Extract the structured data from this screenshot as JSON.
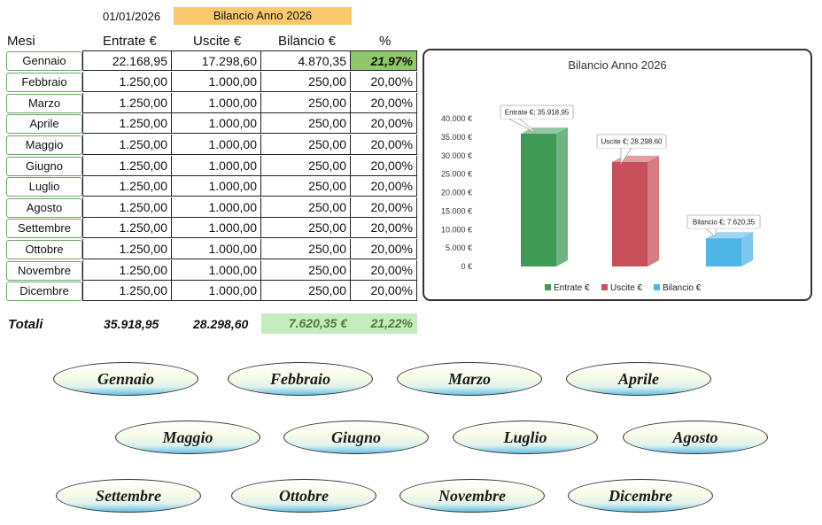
{
  "header": {
    "date": "01/01/2026",
    "title": "Bilancio Anno 2026"
  },
  "columns": {
    "month": "Mesi",
    "entrate": "Entrate €",
    "uscite": "Uscite €",
    "bilancio": "Bilancio €",
    "percent": "%"
  },
  "rows": [
    {
      "month": "Gennaio",
      "entrate": "22.168,95",
      "uscite": "17.298,60",
      "bilancio": "4.870,35",
      "percent": "21,97%"
    },
    {
      "month": "Febbraio",
      "entrate": "1.250,00",
      "uscite": "1.000,00",
      "bilancio": "250,00",
      "percent": "20,00%"
    },
    {
      "month": "Marzo",
      "entrate": "1.250,00",
      "uscite": "1.000,00",
      "bilancio": "250,00",
      "percent": "20,00%"
    },
    {
      "month": "Aprile",
      "entrate": "1.250,00",
      "uscite": "1.000,00",
      "bilancio": "250,00",
      "percent": "20,00%"
    },
    {
      "month": "Maggio",
      "entrate": "1.250,00",
      "uscite": "1.000,00",
      "bilancio": "250,00",
      "percent": "20,00%"
    },
    {
      "month": "Giugno",
      "entrate": "1.250,00",
      "uscite": "1.000,00",
      "bilancio": "250,00",
      "percent": "20,00%"
    },
    {
      "month": "Luglio",
      "entrate": "1.250,00",
      "uscite": "1.000,00",
      "bilancio": "250,00",
      "percent": "20,00%"
    },
    {
      "month": "Agosto",
      "entrate": "1.250,00",
      "uscite": "1.000,00",
      "bilancio": "250,00",
      "percent": "20,00%"
    },
    {
      "month": "Settembre",
      "entrate": "1.250,00",
      "uscite": "1.000,00",
      "bilancio": "250,00",
      "percent": "20,00%"
    },
    {
      "month": "Ottobre",
      "entrate": "1.250,00",
      "uscite": "1.000,00",
      "bilancio": "250,00",
      "percent": "20,00%"
    },
    {
      "month": "Novembre",
      "entrate": "1.250,00",
      "uscite": "1.000,00",
      "bilancio": "250,00",
      "percent": "20,00%"
    },
    {
      "month": "Dicembre",
      "entrate": "1.250,00",
      "uscite": "1.000,00",
      "bilancio": "250,00",
      "percent": "20,00%"
    }
  ],
  "totals": {
    "label": "Totali",
    "entrate": "35.918,95",
    "uscite": "28.298,60",
    "bilancio": "7.620,35 €",
    "percent": "21,22%"
  },
  "colors": {
    "green": "#3e9a55",
    "red": "#c8505a",
    "blue": "#4fb4e6",
    "highlight": "#8fc86a",
    "title_bg": "#f9c86b"
  },
  "chart_data": {
    "type": "bar",
    "title": "Bilancio Anno 2026",
    "categories": [
      "Entrate €",
      "Uscite €",
      "Bilancio €"
    ],
    "values": [
      35918.95,
      28298.6,
      7620.35
    ],
    "data_labels": [
      "Entrate €; 35.918,95",
      "Uscite €; 28.298,60",
      "Bilancio €; 7.620,35"
    ],
    "colors": [
      "#3e9a55",
      "#c8505a",
      "#4fb4e6"
    ],
    "ylim": [
      0,
      40000
    ],
    "yticks": [
      "0 €",
      "5.000 €",
      "10.000 €",
      "15.000 €",
      "20.000 €",
      "25.000 €",
      "30.000 €",
      "35.000 €",
      "40.000 €"
    ],
    "legend": [
      "Entrate €",
      "Uscite €",
      "Bilancio €"
    ],
    "legend_position": "bottom",
    "grid": false
  },
  "month_buttons": [
    "Gennaio",
    "Febbraio",
    "Marzo",
    "Aprile",
    "Maggio",
    "Giugno",
    "Luglio",
    "Agosto",
    "Settembre",
    "Ottobre",
    "Novembre",
    "Dicembre"
  ]
}
